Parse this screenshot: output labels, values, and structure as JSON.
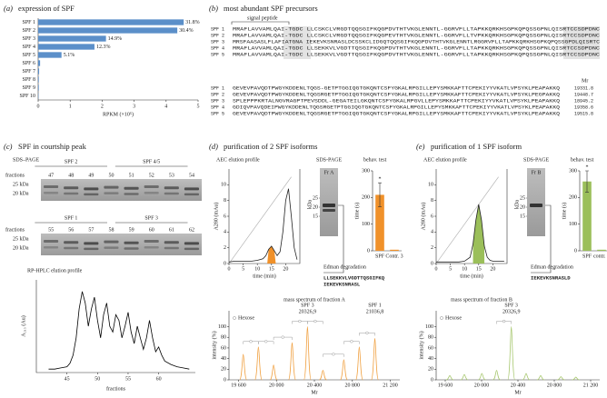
{
  "panels": {
    "a": {
      "label": "(a)",
      "title": "expression of SPF",
      "chart": {
        "type": "bar",
        "orientation": "horizontal",
        "color": "#5b8fc9",
        "categories": [
          "SPF 1",
          "SPF 2",
          "SPF 3",
          "SPF 4",
          "SPF 5",
          "SPF 6",
          "SPF 7",
          "SPF 8",
          "SPF 9",
          "SPF 10"
        ],
        "values": [
          4.55,
          4.35,
          2.12,
          1.76,
          0.73,
          0.06,
          0.03,
          0.02,
          0.02,
          0.01
        ],
        "annotations": [
          "31.8%",
          "30.4%",
          "14.9%",
          "12.3%",
          "5.1%"
        ],
        "xlim": [
          0,
          5
        ],
        "xticks": [
          0,
          1,
          2,
          3,
          4,
          5
        ],
        "xlabel": "RPKM (×10⁵)"
      }
    },
    "b": {
      "label": "(b)",
      "title": "most abundant SPF precursors",
      "signal_label": "signal peptide",
      "mr_label": "Mr",
      "rows": [
        {
          "name": "SPF 1",
          "seq1": "MRAFLAVVAMLQAI-TGDC LLCSKCLVRGDTQQSGIFKQGPDVTHTVKGLENNTL-GGRVFLLTAPKKQRKHSGPKQPQSSGPNLQISRTCCSDPDNC",
          "seq2": "GEVEVPAVQDTPWGYKDDENLTQGS-GETPTGGIQGTGKQNTCSFYGKALRPGILLEPYSMKKAFTTCPEKIYYVKATLVPSYKLPEAPAKKQ",
          "mr": 19331.8
        },
        {
          "name": "SPF 2",
          "seq1": "MRAFLAVVAMLQAI-TGDC LLCSKCLVRGDTQQSGIFKQGPEVTHTVKGLENNTL-GGRVFLLTVPKKQRKHSGPKQPQSSGPNLQISRTCCSDPDNC",
          "seq2": "GEVEVPAVQDTPWGYKDDENLTQGSRGETPTGGIQGTGKQNTCSFYGKALRPGILLEPYSMKKAFTTCPEKIYYVKATLVPSYKLPEGPAKKQ",
          "mr": 19448.7
        },
        {
          "name": "SPF 3",
          "seq1": "MRSFAASASLFLAFIATGNA IEKEVKSNRASLDCSSKCLIDGQTQQSGIFKQGPDVTHTVKGLENNTLRGGRVFLLTAPKKQRKHSGPKQPQSSGPDLQISRTC",
          "seq2": "SPLEPPPKRTALNGVRAGPTPEVSDDL-GEGATEILGKQNTCSFYGKALRPGVLLEPYSMKKAFTTCPEKIYYVKATLVPSYKLPEAPAKKQ",
          "mr": 18945.2
        },
        {
          "name": "SPF 4",
          "seq1": "MRAFLAVVAMLQAI-TGDC LLSEKKVLVGDTTQSGIFKQGPDVTHTVKGLENNTL-GGRVFLLTAPKKQRKHSGPKQPQSSGPNLQISRTCCSDPDNC",
          "seq2": "GDIQVPAVQDEIPWGYKDDENLTQGSRGETPTGGIQGTGKQNTCSFYGKALRPGILLEPYSMKKAFTTCPEKIYYVKATLVPSYKLPEAPAKKQ",
          "mr": 19358.6
        },
        {
          "name": "SPF 5",
          "seq1": "MRAFLAVVAMLQAI-TGDC LLSEKKVLVGDTTQSGIFKQGPDVTHTVKGLENNTL-GGRVFLLTAPKKQRKHSGPKQPQSSGPNLQISRTCCSDPDNC",
          "seq2": "GEVEVPAVQDTPWGYKDDENLTQGSRGETPTGGIQGTGKQNTCSFYGKALRPGILLEPYSMKKAFTTCPEKIYYVKATLVPSYKLPEAPAKKQ",
          "mr": 19515.8
        }
      ]
    },
    "c": {
      "label": "(c)",
      "title": "SPF in courtship peak",
      "gel_title": "SDS–PAGE",
      "fractions_label": "fractions",
      "kda": [
        "25 kDa",
        "20 kDa"
      ],
      "gel1": {
        "groups": [
          "SPF 2",
          "SPF 4/5"
        ],
        "fractions": [
          47,
          48,
          49,
          50,
          51,
          52,
          53,
          54
        ]
      },
      "gel2": {
        "groups": [
          "SPF 1",
          "SPF 3"
        ],
        "fractions": [
          55,
          56,
          57,
          58,
          59,
          60,
          61,
          62
        ]
      },
      "hplc": {
        "type": "line",
        "title": "RP-HPLC elution profile",
        "ylabel": "A₂₁₅ (Au)",
        "xlabel": "fractions",
        "x": [
          42,
          43,
          44,
          45,
          45.5,
          46,
          46.5,
          47,
          47.5,
          48,
          48.5,
          49,
          49.5,
          50,
          50.5,
          51,
          51.5,
          52,
          52.5,
          53,
          53.5,
          54,
          54.5,
          55,
          55.5,
          56,
          56.5,
          57,
          57.5,
          58,
          58.5,
          59,
          59.5,
          60,
          60.5,
          61,
          62,
          63,
          64,
          65
        ],
        "values": [
          0.3,
          0.3,
          0.4,
          0.5,
          0.8,
          1.5,
          3,
          5.5,
          7,
          6,
          4,
          5.5,
          6.5,
          4.5,
          3,
          5,
          6,
          4,
          3.5,
          5,
          4.5,
          3,
          4,
          5.2,
          3.5,
          2.5,
          4,
          3,
          2,
          3,
          4.5,
          3,
          1.8,
          2.2,
          1.5,
          1,
          0.7,
          0.5,
          0.4,
          0.3
        ],
        "xlim": [
          40,
          66
        ],
        "ylim": [
          0,
          8
        ],
        "xticks": [
          45,
          50,
          55,
          60
        ],
        "color": "#000000"
      }
    },
    "d": {
      "label": "(d)",
      "title": "purification of 2 SPF isoforms",
      "gel_title": "SDS-PAGE",
      "fraction": "Fr A",
      "kda_label": "kDa",
      "kda": [
        25,
        20,
        15
      ],
      "edman_title": "Edman degradation",
      "edman": [
        "LLSEKKVLVGDTTQSGIFKQ",
        "IEKEVKSNRASL"
      ],
      "aec": {
        "type": "line",
        "title": "AEC elution profile",
        "ylabel": "A280 (mAu)",
        "xlabel": "time (min)",
        "color": "#f0912a",
        "x": [
          0,
          2,
          4,
          6,
          8,
          10,
          12,
          13,
          14,
          15,
          16,
          17,
          18,
          19,
          20,
          21,
          22,
          23,
          24
        ],
        "values": [
          0.2,
          0.3,
          0.3,
          0.3,
          0.3,
          0.4,
          0.6,
          1.0,
          1.8,
          2.2,
          1.6,
          1.0,
          1.5,
          4,
          8,
          9.5,
          6,
          2,
          0.5
        ],
        "gradient": {
          "x": [
            0,
            22
          ],
          "values": [
            0,
            11
          ]
        },
        "fraction_range": [
          13.5,
          16.5
        ],
        "xlim": [
          0,
          25
        ],
        "ylim": [
          0,
          12
        ],
        "xticks": [
          0,
          5,
          10,
          15,
          20
        ],
        "yticks": [
          0,
          2,
          4,
          6,
          8,
          10
        ]
      },
      "behav": {
        "type": "bar",
        "title": "behav. test",
        "ylabel": "time (s)",
        "categories": [
          "SPF",
          "Contr. 3"
        ],
        "values": [
          210,
          4
        ],
        "errors": [
          45,
          null
        ],
        "marker": "*",
        "ylim": [
          0,
          300
        ],
        "yticks": [
          0,
          100,
          200,
          300
        ],
        "color": "#f0912a"
      },
      "mass": {
        "type": "spectrum",
        "title": "mass spectrum of fraction A",
        "ylabel": "intensity (%)",
        "xlabel": "Mr",
        "legend": "Hexose",
        "color": "#f0a040",
        "x": [
          19650,
          19810,
          19970,
          20165,
          20327,
          20490,
          20710,
          20873,
          21037
        ],
        "values": [
          48,
          62,
          28,
          70,
          100,
          18,
          38,
          62,
          78
        ],
        "annotations": [
          {
            "name": "SPF 3",
            "mass": {
              "value": 20326.9,
              "label": "20326,9"
            }
          },
          {
            "name": "SPF 1",
            "mass": {
              "value": 21036.8,
              "label": "21036,8"
            }
          }
        ],
        "xlim": [
          19500,
          21300
        ],
        "ylim": [
          0,
          130
        ],
        "yticks": [
          0,
          20,
          40,
          60,
          80,
          100
        ],
        "xticks": [
          {
            "value": 19600,
            "label": "19 600"
          },
          {
            "value": 20000,
            "label": "20 000"
          },
          {
            "value": 20400,
            "label": "20 400"
          },
          {
            "value": 20800,
            "label": "20 800"
          },
          {
            "value": 21200,
            "label": "21 200"
          }
        ]
      }
    },
    "e": {
      "label": "(e)",
      "title": "purification of 1 SPF isoform",
      "gel_title": "SDS-PAGE",
      "fraction": "Fr B",
      "kda_label": "kDa",
      "kda": [
        25,
        20,
        15
      ],
      "edman_title": "Edman degradation",
      "edman": [
        "IEKEVKSNRASLD"
      ],
      "aec": {
        "type": "line",
        "title": "AEC elution profile",
        "ylabel": "A280 (mAu)",
        "xlabel": "time (min)",
        "color": "#9bbf5a",
        "x": [
          0,
          2,
          4,
          6,
          8,
          10,
          12,
          13,
          14,
          15,
          16,
          17,
          18,
          19,
          20,
          22,
          24
        ],
        "values": [
          0.2,
          0.2,
          0.2,
          0.2,
          0.2,
          0.3,
          0.8,
          2.5,
          5.5,
          7.5,
          5.5,
          2.2,
          0.8,
          0.4,
          0.3,
          0.3,
          0.3
        ],
        "gradient": {
          "x": [
            0,
            22
          ],
          "values": [
            0,
            11
          ]
        },
        "fraction_range": [
          13,
          17
        ],
        "xlim": [
          0,
          25
        ],
        "ylim": [
          0,
          12
        ],
        "xticks": [
          0,
          5,
          10,
          15,
          20
        ],
        "yticks": [
          0,
          2,
          4,
          6,
          8,
          10
        ]
      },
      "behav": {
        "type": "bar",
        "title": "behav. test",
        "ylabel": "time (s)",
        "categories": [
          "SPF",
          "contr. 3"
        ],
        "values": [
          260,
          4
        ],
        "errors": [
          40,
          null
        ],
        "marker": "*",
        "ylim": [
          0,
          300
        ],
        "yticks": [
          0,
          100,
          200,
          300
        ],
        "color": "#9bbf5a"
      },
      "mass": {
        "type": "spectrum",
        "title": "mass spectrum of fraction B",
        "ylabel": "intensity (%)",
        "xlabel": "Mr",
        "legend": "Hexose",
        "color": "#a8c870",
        "x": [
          19650,
          19810,
          20003,
          20165,
          20327,
          20490,
          20650,
          20873,
          21037
        ],
        "values": [
          8,
          10,
          12,
          18,
          100,
          12,
          8,
          6,
          5
        ],
        "annotations": [
          {
            "name": "SPF 3",
            "mass": {
              "value": 20326.9,
              "label": "20326,9"
            }
          }
        ],
        "xlim": [
          19500,
          21300
        ],
        "ylim": [
          0,
          130
        ],
        "yticks": [
          0,
          20,
          40,
          60,
          80,
          100
        ],
        "xticks": [
          {
            "value": 19600,
            "label": "19 600"
          },
          {
            "value": 20000,
            "label": "20 000"
          },
          {
            "value": 20400,
            "label": "20 400"
          },
          {
            "value": 20800,
            "label": "20 800"
          },
          {
            "value": 21200,
            "label": "21 200"
          }
        ]
      }
    }
  }
}
